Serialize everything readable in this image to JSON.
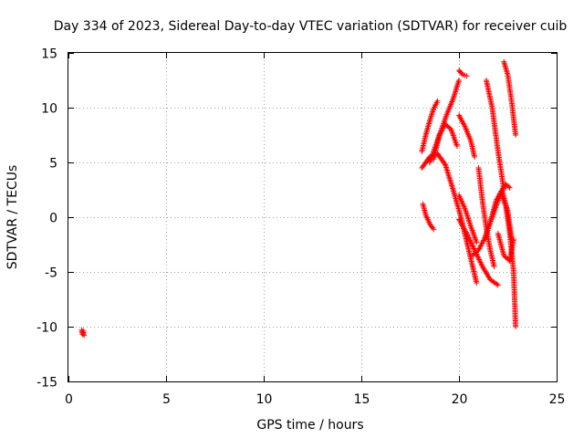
{
  "chart_data": {
    "type": "scatter",
    "title": "Day 334 of 2023, Sidereal Day-to-day VTEC variation (SDTVAR) for receiver cuib",
    "xlabel": "GPS time / hours",
    "ylabel": "SDTVAR / TECUs",
    "xlim": [
      0,
      25
    ],
    "ylim": [
      -15,
      15
    ],
    "xticks": [
      0,
      5,
      10,
      15,
      20,
      25
    ],
    "yticks": [
      -15,
      -10,
      -5,
      0,
      5,
      10,
      15
    ],
    "grid": true,
    "marker": "plus",
    "color": "#ff0000",
    "tracks": [
      {
        "x": [
          0.68,
          0.72,
          0.76,
          0.8
        ],
        "y": [
          -10.3,
          -10.7,
          -10.4,
          -10.8
        ]
      },
      {
        "x": [
          18.15,
          18.3,
          18.5,
          18.7
        ],
        "y": [
          1.2,
          0.2,
          -0.6,
          -1.1
        ]
      },
      {
        "x": [
          18.1,
          18.3,
          18.5,
          18.7,
          18.9
        ],
        "y": [
          6.0,
          7.5,
          8.8,
          9.9,
          10.6
        ]
      },
      {
        "x": [
          18.1,
          18.5,
          18.9,
          19.3,
          19.7,
          20.1,
          20.5,
          20.9
        ],
        "y": [
          4.5,
          5.5,
          5.8,
          4.8,
          2.5,
          0.0,
          -3.0,
          -6.0
        ]
      },
      {
        "x": [
          18.7,
          19.0,
          19.3,
          19.6,
          19.9
        ],
        "y": [
          5.3,
          7.5,
          8.5,
          8.0,
          6.5
        ]
      },
      {
        "x": [
          18.5,
          18.8,
          19.1,
          19.4,
          19.7,
          20.0
        ],
        "y": [
          5.0,
          6.5,
          8.0,
          9.5,
          10.8,
          12.5
        ]
      },
      {
        "x": [
          20.0,
          20.3,
          20.6,
          20.8
        ],
        "y": [
          9.3,
          8.3,
          7.0,
          5.5
        ]
      },
      {
        "x": [
          20.0,
          20.2,
          20.4
        ],
        "y": [
          13.4,
          13.0,
          12.9
        ]
      },
      {
        "x": [
          20.0,
          20.3,
          20.6,
          20.9
        ],
        "y": [
          2.0,
          0.8,
          -0.8,
          -2.3
        ]
      },
      {
        "x": [
          20.0,
          20.4,
          20.8,
          21.2,
          21.6,
          22.0
        ],
        "y": [
          -0.2,
          -1.5,
          -3.0,
          -4.5,
          -5.7,
          -6.2
        ]
      },
      {
        "x": [
          20.7,
          21.0,
          21.3,
          21.6,
          21.9,
          22.2,
          22.4,
          22.6
        ],
        "y": [
          -3.5,
          -3.0,
          -2.0,
          -0.5,
          1.0,
          2.5,
          3.0,
          2.7
        ]
      },
      {
        "x": [
          21.0,
          21.2,
          21.4,
          21.6,
          21.8
        ],
        "y": [
          4.5,
          1.5,
          -1.0,
          -3.0,
          -4.5
        ]
      },
      {
        "x": [
          21.3,
          21.6,
          21.9,
          22.2,
          22.5,
          22.7
        ],
        "y": [
          -2.0,
          -0.5,
          1.5,
          2.5,
          0.5,
          -2.0
        ]
      },
      {
        "x": [
          22.0,
          22.3,
          22.6,
          22.8
        ],
        "y": [
          -1.5,
          -3.5,
          -4.0,
          -2.0
        ]
      },
      {
        "x": [
          21.4,
          21.7,
          22.0,
          22.3
        ],
        "y": [
          12.5,
          10.0,
          6.0,
          2.5
        ]
      },
      {
        "x": [
          22.3,
          22.5,
          22.7,
          22.9
        ],
        "y": [
          14.2,
          13.0,
          10.5,
          7.5
        ]
      },
      {
        "x": [
          22.2,
          22.4,
          22.6,
          22.8,
          22.9
        ],
        "y": [
          2.0,
          1.0,
          -1.5,
          -5.0,
          -10.0
        ]
      }
    ]
  }
}
